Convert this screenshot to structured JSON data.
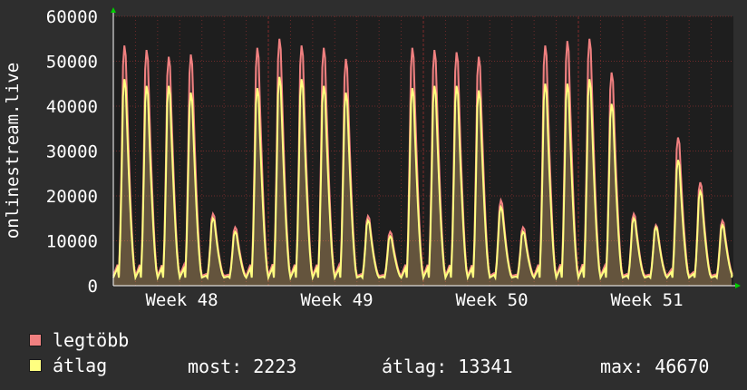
{
  "chart_data": {
    "type": "area",
    "ylabel": "onlinestream.live",
    "ylim": [
      0,
      60000
    ],
    "yticks": [
      0,
      10000,
      20000,
      30000,
      40000,
      50000,
      60000
    ],
    "ytick_labels": [
      "0",
      "10000",
      "20000",
      "30000",
      "40000",
      "50000",
      "60000"
    ],
    "xtick_labels": [
      "Week 48",
      "Week 49",
      "Week 50",
      "Week 51"
    ],
    "grid": true,
    "days": 28,
    "series": [
      {
        "name": "legtöbb",
        "color": "#f08080",
        "daily_peak": [
          53500,
          52500,
          51000,
          51500,
          16000,
          13000,
          53000,
          55000,
          53500,
          53000,
          50500,
          15500,
          12000,
          53000,
          52500,
          52000,
          51000,
          19000,
          13000,
          53500,
          54500,
          55000,
          47500,
          16000,
          13500,
          33000,
          23000,
          14500
        ]
      },
      {
        "name": "átlag",
        "color": "#ffff80",
        "daily_peak": [
          46000,
          44500,
          44500,
          43000,
          15000,
          12000,
          44000,
          46500,
          46000,
          44500,
          43000,
          14500,
          11000,
          44000,
          44500,
          44500,
          43500,
          17500,
          12000,
          45000,
          45000,
          46000,
          40500,
          15000,
          13000,
          28000,
          21000,
          13500
        ]
      }
    ]
  },
  "legend": [
    {
      "label": "legtöbb",
      "color": "#f08080"
    },
    {
      "label": "átlag",
      "color": "#ffff80"
    }
  ],
  "stats": {
    "most": "most: 2223",
    "atlag": "átlag: 13341",
    "max": "max: 46670"
  },
  "colors": {
    "background": "#2e2e2e",
    "plot_background": "#1e1e1e",
    "grid": "#6e2a2a",
    "axis_arrow": "#00cc00",
    "text": "#ffffff"
  }
}
